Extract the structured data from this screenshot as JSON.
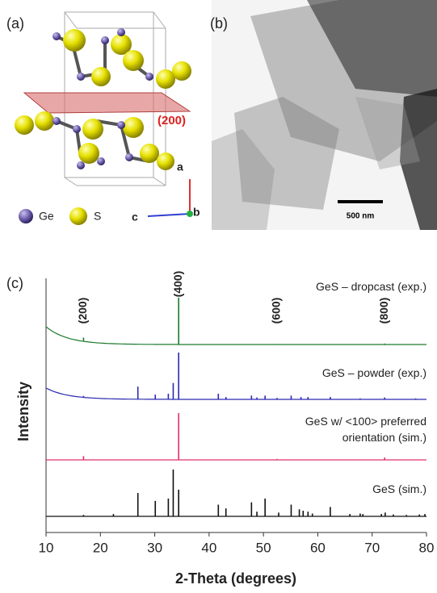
{
  "panel_a": {
    "label": "(a)",
    "plane_label": "(200)",
    "axis_a": "a",
    "axis_b": "b",
    "axis_c": "c",
    "legend": [
      "Ge",
      "S"
    ]
  },
  "panel_b": {
    "label": "(b)",
    "scale_bar": "500 nm"
  },
  "panel_c": {
    "label": "(c)"
  },
  "chart_data": {
    "type": "stick",
    "x_label": "2-Theta (degrees)",
    "y_label": "Intensity",
    "xlim": [
      10,
      80
    ],
    "xticks": [
      10,
      20,
      30,
      40,
      50,
      60,
      70,
      80
    ],
    "annotations": [
      {
        "text": "(200)",
        "x": 16.9
      },
      {
        "text": "(400)",
        "x": 34.4
      },
      {
        "text": "(600)",
        "x": 52.5
      },
      {
        "text": "(800)",
        "x": 72.3
      }
    ],
    "series": [
      {
        "name": "GeS – dropcast (exp.)",
        "color": "#1e7a2e",
        "x": [
          16.9,
          34.4,
          52.5,
          72.3
        ],
        "values": [
          8,
          100,
          1,
          2
        ]
      },
      {
        "name": "GeS – powder (exp.)",
        "color": "#2a2ab0",
        "x": [
          16.9,
          26.9,
          30.1,
          32.5,
          33.4,
          34.4,
          41.7,
          43.1,
          47.8,
          48.8,
          50.3,
          52.5,
          55.1,
          56.9,
          58.2,
          62.3,
          67.8,
          72.3,
          78
        ],
        "values": [
          3,
          27,
          10,
          12,
          35,
          100,
          12,
          5,
          8,
          4,
          8,
          3,
          8,
          5,
          5,
          5,
          2,
          4,
          2
        ]
      },
      {
        "name": "GeS w/ <100> preferred orientation (sim.)",
        "color": "#e0306a",
        "x": [
          16.9,
          34.4,
          52.5,
          72.3
        ],
        "values": [
          8,
          100,
          2,
          5
        ]
      },
      {
        "name": "GeS (sim.)",
        "color": "#111111",
        "x": [
          16.9,
          22.4,
          26.9,
          30.1,
          32.5,
          33.4,
          34.4,
          41.7,
          43.1,
          47.8,
          48.8,
          50.3,
          52.8,
          55.1,
          56.6,
          57.3,
          58.2,
          59,
          62.3,
          65.9,
          67.8,
          68.3,
          71.7,
          72.4,
          73.9,
          76.3,
          78.7,
          79.7
        ],
        "values": [
          3,
          5,
          50,
          33,
          38,
          100,
          57,
          25,
          17,
          30,
          10,
          38,
          8,
          25,
          15,
          12,
          10,
          6,
          20,
          5,
          6,
          5,
          5,
          8,
          4,
          3,
          4,
          5
        ]
      }
    ]
  }
}
